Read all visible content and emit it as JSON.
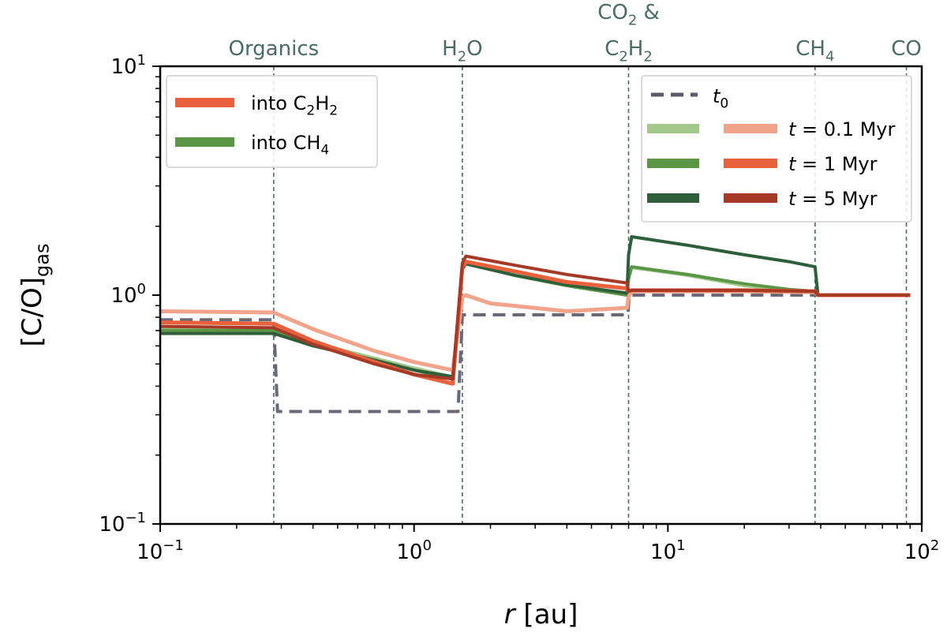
{
  "chart_data": {
    "type": "line",
    "xscale": "log",
    "yscale": "log",
    "xlim": [
      0.1,
      100
    ],
    "ylim": [
      0.1,
      10
    ],
    "xlabel": {
      "var": "r",
      "unit": " [au]"
    },
    "ylabel": {
      "base": "[C/O]",
      "sub": "gas"
    },
    "xticks": [
      {
        "value": 0.1,
        "base": "10",
        "exp": "−1"
      },
      {
        "value": 1,
        "base": "10",
        "exp": "0"
      },
      {
        "value": 10,
        "base": "10",
        "exp": "1"
      },
      {
        "value": 100,
        "base": "10",
        "exp": "2"
      }
    ],
    "yticks": [
      {
        "value": 0.1,
        "base": "10",
        "exp": "−1"
      },
      {
        "value": 1,
        "base": "10",
        "exp": "0"
      },
      {
        "value": 10,
        "base": "10",
        "exp": "1"
      }
    ],
    "snowlines": [
      {
        "x": 0.28,
        "lines": [
          [
            {
              "t": "Organics"
            }
          ]
        ]
      },
      {
        "x": 1.55,
        "lines": [
          [
            {
              "t": "H"
            },
            {
              "t": "2",
              "sub": true
            },
            {
              "t": "O"
            }
          ]
        ]
      },
      {
        "x": 7.0,
        "lines": [
          [
            {
              "t": "CO"
            },
            {
              "t": "2",
              "sub": true
            },
            {
              "t": " &"
            }
          ],
          [
            {
              "t": "C"
            },
            {
              "t": "2",
              "sub": true
            },
            {
              "t": "H"
            },
            {
              "t": "2",
              "sub": true
            }
          ]
        ]
      },
      {
        "x": 38,
        "lines": [
          [
            {
              "t": "CH"
            },
            {
              "t": "4",
              "sub": true
            }
          ]
        ]
      },
      {
        "x": 87,
        "lines": [
          [
            {
              "t": "CO"
            }
          ]
        ]
      }
    ],
    "legend_left": [
      {
        "label": [
          {
            "t": "into C"
          },
          {
            "t": "2",
            "sub": true
          },
          {
            "t": "H"
          },
          {
            "t": "2",
            "sub": true
          }
        ],
        "color": "#e8613c"
      },
      {
        "label": [
          {
            "t": "into CH"
          },
          {
            "t": "4",
            "sub": true
          }
        ],
        "color": "#5a9645"
      }
    ],
    "legend_right": {
      "t0": {
        "label": [
          {
            "t": "t",
            "i": true
          },
          {
            "t": "0",
            "sub": true
          }
        ],
        "color": "#5d5a6e"
      },
      "rows": [
        {
          "label": [
            {
              "t": "t",
              "i": true
            },
            {
              "t": " = 0.1 Myr"
            }
          ],
          "green": "#a3c98a",
          "red": "#f2a48b"
        },
        {
          "label": [
            {
              "t": "t",
              "i": true
            },
            {
              "t": " = 1 Myr"
            }
          ],
          "green": "#5a9645",
          "red": "#e8613c"
        },
        {
          "label": [
            {
              "t": "t",
              "i": true
            },
            {
              "t": " = 5 Myr"
            }
          ],
          "green": "#2f5e3b",
          "red": "#a63a26"
        }
      ]
    },
    "series": [
      {
        "name": "t0",
        "color": "#6b6879",
        "dashed": true,
        "width": 4,
        "x": [
          0.1,
          0.28,
          0.29,
          1.49,
          1.55,
          6.95,
          7.05,
          90
        ],
        "y": [
          0.78,
          0.78,
          0.31,
          0.31,
          0.82,
          0.82,
          1.0,
          1.0
        ]
      },
      {
        "name": "CH4 0.1 Myr",
        "color": "#a3c98a",
        "width": 4,
        "x": [
          0.1,
          0.28,
          0.4,
          0.7,
          1.0,
          1.42,
          1.55,
          1.6,
          2.5,
          4,
          6.9,
          7.0,
          7.2,
          12,
          20,
          30,
          38,
          39,
          60,
          90
        ],
        "y": [
          0.71,
          0.71,
          0.62,
          0.53,
          0.48,
          0.44,
          1.3,
          1.38,
          1.22,
          1.1,
          1.0,
          1.18,
          1.32,
          1.22,
          1.1,
          1.05,
          1.04,
          1.0,
          1.0,
          1.0
        ]
      },
      {
        "name": "CH4 1 Myr",
        "color": "#5a9645",
        "width": 4,
        "x": [
          0.1,
          0.28,
          0.4,
          0.7,
          1.0,
          1.42,
          1.55,
          1.6,
          2.5,
          4,
          6.9,
          7.0,
          7.2,
          12,
          20,
          30,
          38,
          39,
          60,
          90
        ],
        "y": [
          0.7,
          0.7,
          0.61,
          0.52,
          0.47,
          0.43,
          1.3,
          1.38,
          1.22,
          1.1,
          1.0,
          1.18,
          1.33,
          1.23,
          1.12,
          1.06,
          1.04,
          1.0,
          1.0,
          1.0
        ]
      },
      {
        "name": "CH4 5 Myr",
        "color": "#2f5e3b",
        "width": 4,
        "x": [
          0.1,
          0.28,
          0.4,
          0.7,
          1.0,
          1.42,
          1.55,
          1.6,
          2.5,
          4,
          6.9,
          7.0,
          7.2,
          12,
          20,
          30,
          38,
          39,
          60,
          90
        ],
        "y": [
          0.68,
          0.68,
          0.6,
          0.52,
          0.47,
          0.44,
          1.3,
          1.37,
          1.22,
          1.11,
          1.02,
          1.5,
          1.8,
          1.65,
          1.5,
          1.4,
          1.33,
          1.0,
          1.0,
          1.0
        ]
      },
      {
        "name": "C2H2 0.1 Myr",
        "color": "#f2a48b",
        "width": 5,
        "x": [
          0.1,
          0.28,
          0.4,
          0.7,
          1.0,
          1.42,
          1.55,
          1.6,
          2,
          4,
          6.9,
          7.0,
          7.2,
          20,
          38,
          39,
          60,
          90
        ],
        "y": [
          0.85,
          0.84,
          0.71,
          0.57,
          0.51,
          0.47,
          0.98,
          1.0,
          0.92,
          0.85,
          0.88,
          0.98,
          1.04,
          1.04,
          1.03,
          1.0,
          1.0,
          1.0
        ]
      },
      {
        "name": "C2H2 1 Myr",
        "color": "#e8613c",
        "width": 5,
        "x": [
          0.1,
          0.28,
          0.4,
          0.7,
          1.0,
          1.42,
          1.55,
          1.6,
          2.5,
          4,
          6.9,
          7.0,
          7.2,
          20,
          38,
          39,
          60,
          90
        ],
        "y": [
          0.76,
          0.75,
          0.63,
          0.51,
          0.45,
          0.41,
          1.32,
          1.4,
          1.27,
          1.14,
          1.07,
          1.04,
          1.05,
          1.05,
          1.04,
          1.0,
          1.0,
          1.0
        ]
      },
      {
        "name": "C2H2 5 Myr",
        "color": "#a63a26",
        "width": 4,
        "x": [
          0.1,
          0.28,
          0.4,
          0.7,
          1.0,
          1.42,
          1.55,
          1.6,
          2.5,
          4,
          6.9,
          7.0,
          7.2,
          20,
          38,
          39,
          60,
          90
        ],
        "y": [
          0.73,
          0.72,
          0.61,
          0.5,
          0.45,
          0.43,
          1.38,
          1.48,
          1.35,
          1.23,
          1.13,
          1.04,
          1.05,
          1.05,
          1.04,
          1.0,
          1.0,
          1.0
        ]
      }
    ]
  }
}
